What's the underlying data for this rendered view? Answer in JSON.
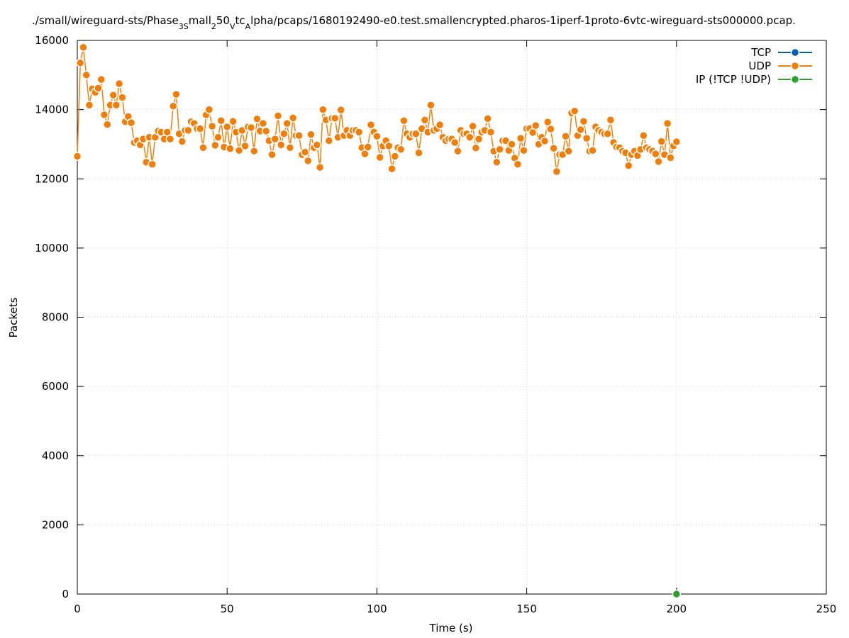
{
  "chart_data": {
    "type": "line",
    "title_parts": [
      {
        "text": "./small/wireguard-sts/Phase",
        "sub": false
      },
      {
        "text": "3S",
        "sub": true
      },
      {
        "text": "mall",
        "sub": false
      },
      {
        "text": "2",
        "sub": true
      },
      {
        "text": "50",
        "sub": false
      },
      {
        "text": "V",
        "sub": true
      },
      {
        "text": "tc",
        "sub": false
      },
      {
        "text": "A",
        "sub": true
      },
      {
        "text": "lpha/pcaps/1680192490-e0.test.smallencrypted.pharos-1iperf-1proto-6vtc-wireguard-sts000000.pcap.",
        "sub": false
      }
    ],
    "x_label": "Time (s)",
    "y_label": "Packets",
    "xlim": [
      0,
      250
    ],
    "xticks": [
      0,
      50,
      100,
      150,
      200,
      250
    ],
    "ylim": [
      0,
      16000
    ],
    "yticks": [
      0,
      2000,
      4000,
      6000,
      8000,
      10000,
      12000,
      14000,
      16000
    ],
    "grid": true,
    "legend": "top-right",
    "series": [
      {
        "name": "TCP",
        "color": "#0060ad",
        "x": [],
        "values": []
      },
      {
        "name": "UDP",
        "color": "#f07f0a",
        "x": [
          0,
          1,
          2,
          3,
          4,
          5,
          6,
          7,
          8,
          9,
          10,
          11,
          12,
          13,
          14,
          15,
          16,
          17,
          18,
          19,
          20,
          21,
          22,
          23,
          24,
          25,
          26,
          27,
          28,
          29,
          30,
          31,
          32,
          33,
          34,
          35,
          36,
          37,
          38,
          39,
          40,
          41,
          42,
          43,
          44,
          45,
          46,
          47,
          48,
          49,
          50,
          51,
          52,
          53,
          54,
          55,
          56,
          57,
          58,
          59,
          60,
          61,
          62,
          63,
          64,
          65,
          66,
          67,
          68,
          69,
          70,
          71,
          72,
          73,
          74,
          75,
          76,
          77,
          78,
          79,
          80,
          81,
          82,
          83,
          84,
          85,
          86,
          87,
          88,
          89,
          90,
          91,
          92,
          93,
          94,
          95,
          96,
          97,
          98,
          99,
          100,
          101,
          102,
          103,
          104,
          105,
          106,
          107,
          108,
          109,
          110,
          111,
          112,
          113,
          114,
          115,
          116,
          117,
          118,
          119,
          120,
          121,
          122,
          123,
          124,
          125,
          126,
          127,
          128,
          129,
          130,
          131,
          132,
          133,
          134,
          135,
          136,
          137,
          138,
          139,
          140,
          141,
          142,
          143,
          144,
          145,
          146,
          147,
          148,
          149,
          150,
          151,
          152,
          153,
          154,
          155,
          156,
          157,
          158,
          159,
          160,
          161,
          162,
          163,
          164,
          165,
          166,
          167,
          168,
          169,
          170,
          171,
          172,
          173,
          174,
          175,
          176,
          177,
          178,
          179,
          180,
          181,
          182,
          183,
          184,
          185,
          186,
          187,
          188,
          189,
          190,
          191,
          192,
          193,
          194,
          195,
          196,
          197,
          198,
          199,
          200
        ],
        "values": [
          12650,
          15350,
          15800,
          15000,
          14130,
          14600,
          14500,
          14620,
          14870,
          13850,
          13570,
          14130,
          14420,
          14130,
          14750,
          14350,
          13650,
          13800,
          13620,
          13050,
          13100,
          12980,
          13150,
          12480,
          13200,
          12420,
          13200,
          13380,
          13350,
          13150,
          13350,
          13150,
          14100,
          14440,
          13300,
          13080,
          13400,
          13400,
          13650,
          13600,
          13450,
          13450,
          12900,
          13850,
          14000,
          13520,
          12970,
          13200,
          13680,
          12920,
          13500,
          12870,
          13660,
          13350,
          12820,
          13400,
          12950,
          13500,
          13480,
          12800,
          13730,
          13380,
          13600,
          13380,
          13100,
          12700,
          13150,
          13820,
          12980,
          13300,
          13600,
          12900,
          13760,
          13250,
          13250,
          12700,
          12770,
          12520,
          13280,
          12900,
          12980,
          12330,
          14000,
          13700,
          13100,
          13750,
          13750,
          13200,
          13990,
          13250,
          13400,
          13250,
          13400,
          13400,
          13350,
          12900,
          12720,
          12920,
          13560,
          13350,
          13230,
          12620,
          12950,
          13100,
          12950,
          12290,
          12650,
          12900,
          12850,
          13680,
          13300,
          13200,
          13300,
          13300,
          12750,
          13450,
          13700,
          13350,
          14130,
          13400,
          13450,
          13560,
          13200,
          13100,
          13150,
          13150,
          13050,
          12800,
          13400,
          13300,
          13300,
          13200,
          13520,
          12890,
          13150,
          13350,
          13400,
          13740,
          13350,
          12800,
          12480,
          12850,
          13100,
          13100,
          12820,
          13000,
          12600,
          12420,
          13170,
          12820,
          13450,
          13450,
          13340,
          13540,
          13000,
          13200,
          13090,
          13640,
          13440,
          12880,
          12210,
          12700,
          12700,
          13230,
          12800,
          13900,
          13960,
          13250,
          13420,
          13660,
          13170,
          12800,
          12820,
          13500,
          13400,
          13350,
          13300,
          13300,
          13700,
          13050,
          12920,
          12900,
          12800,
          12750,
          12380,
          12700,
          12800,
          12670,
          12850,
          13250,
          12900,
          12850,
          12800,
          12720,
          12500,
          13080,
          12700,
          13600,
          12610,
          12950,
          13070
        ]
      },
      {
        "name": "IP (!TCP  !UDP)",
        "color": "#2ca02c",
        "x": [
          200
        ],
        "values": [
          0
        ]
      }
    ]
  }
}
